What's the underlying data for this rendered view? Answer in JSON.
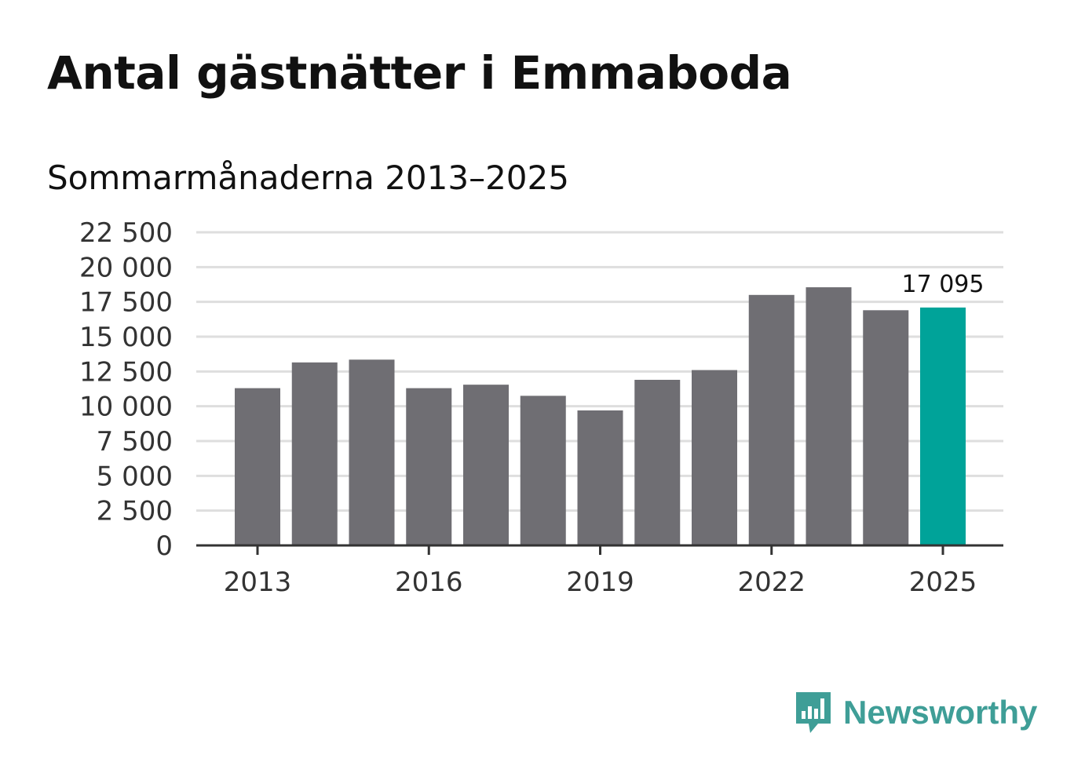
{
  "header": {
    "title": "Antal gästnätter i Emmaboda",
    "subtitle": "Sommarmånaderna 2013–2025"
  },
  "brand": {
    "name": "Newsworthy",
    "icon": "newsworthy-logo-icon",
    "color": "#3f9e97"
  },
  "colors": {
    "bar": "#6f6e73",
    "highlight": "#00a399",
    "grid": "#dedede",
    "axis": "#333333"
  },
  "chart_data": {
    "type": "bar",
    "categories": [
      2013,
      2014,
      2015,
      2016,
      2017,
      2018,
      2019,
      2020,
      2021,
      2022,
      2023,
      2024,
      2025
    ],
    "values": [
      11300,
      13150,
      13350,
      11300,
      11550,
      10750,
      9700,
      11900,
      12600,
      18000,
      18550,
      16900,
      17095
    ],
    "x_tick_labels": [
      "2013",
      "2016",
      "2019",
      "2022",
      "2025"
    ],
    "x_tick_values": [
      2013,
      2016,
      2019,
      2022,
      2025
    ],
    "y_ticks": [
      0,
      2500,
      5000,
      7500,
      10000,
      12500,
      15000,
      17500,
      20000,
      22500
    ],
    "y_tick_labels": [
      "0",
      "2 500",
      "5 000",
      "7 500",
      "10 000",
      "12 500",
      "15 000",
      "17 500",
      "20 000",
      "22 500"
    ],
    "ylim": [
      0,
      22500
    ],
    "highlight_category": 2025,
    "annotation": {
      "category": 2025,
      "text": "17 095"
    },
    "grid": true,
    "legend": false
  }
}
